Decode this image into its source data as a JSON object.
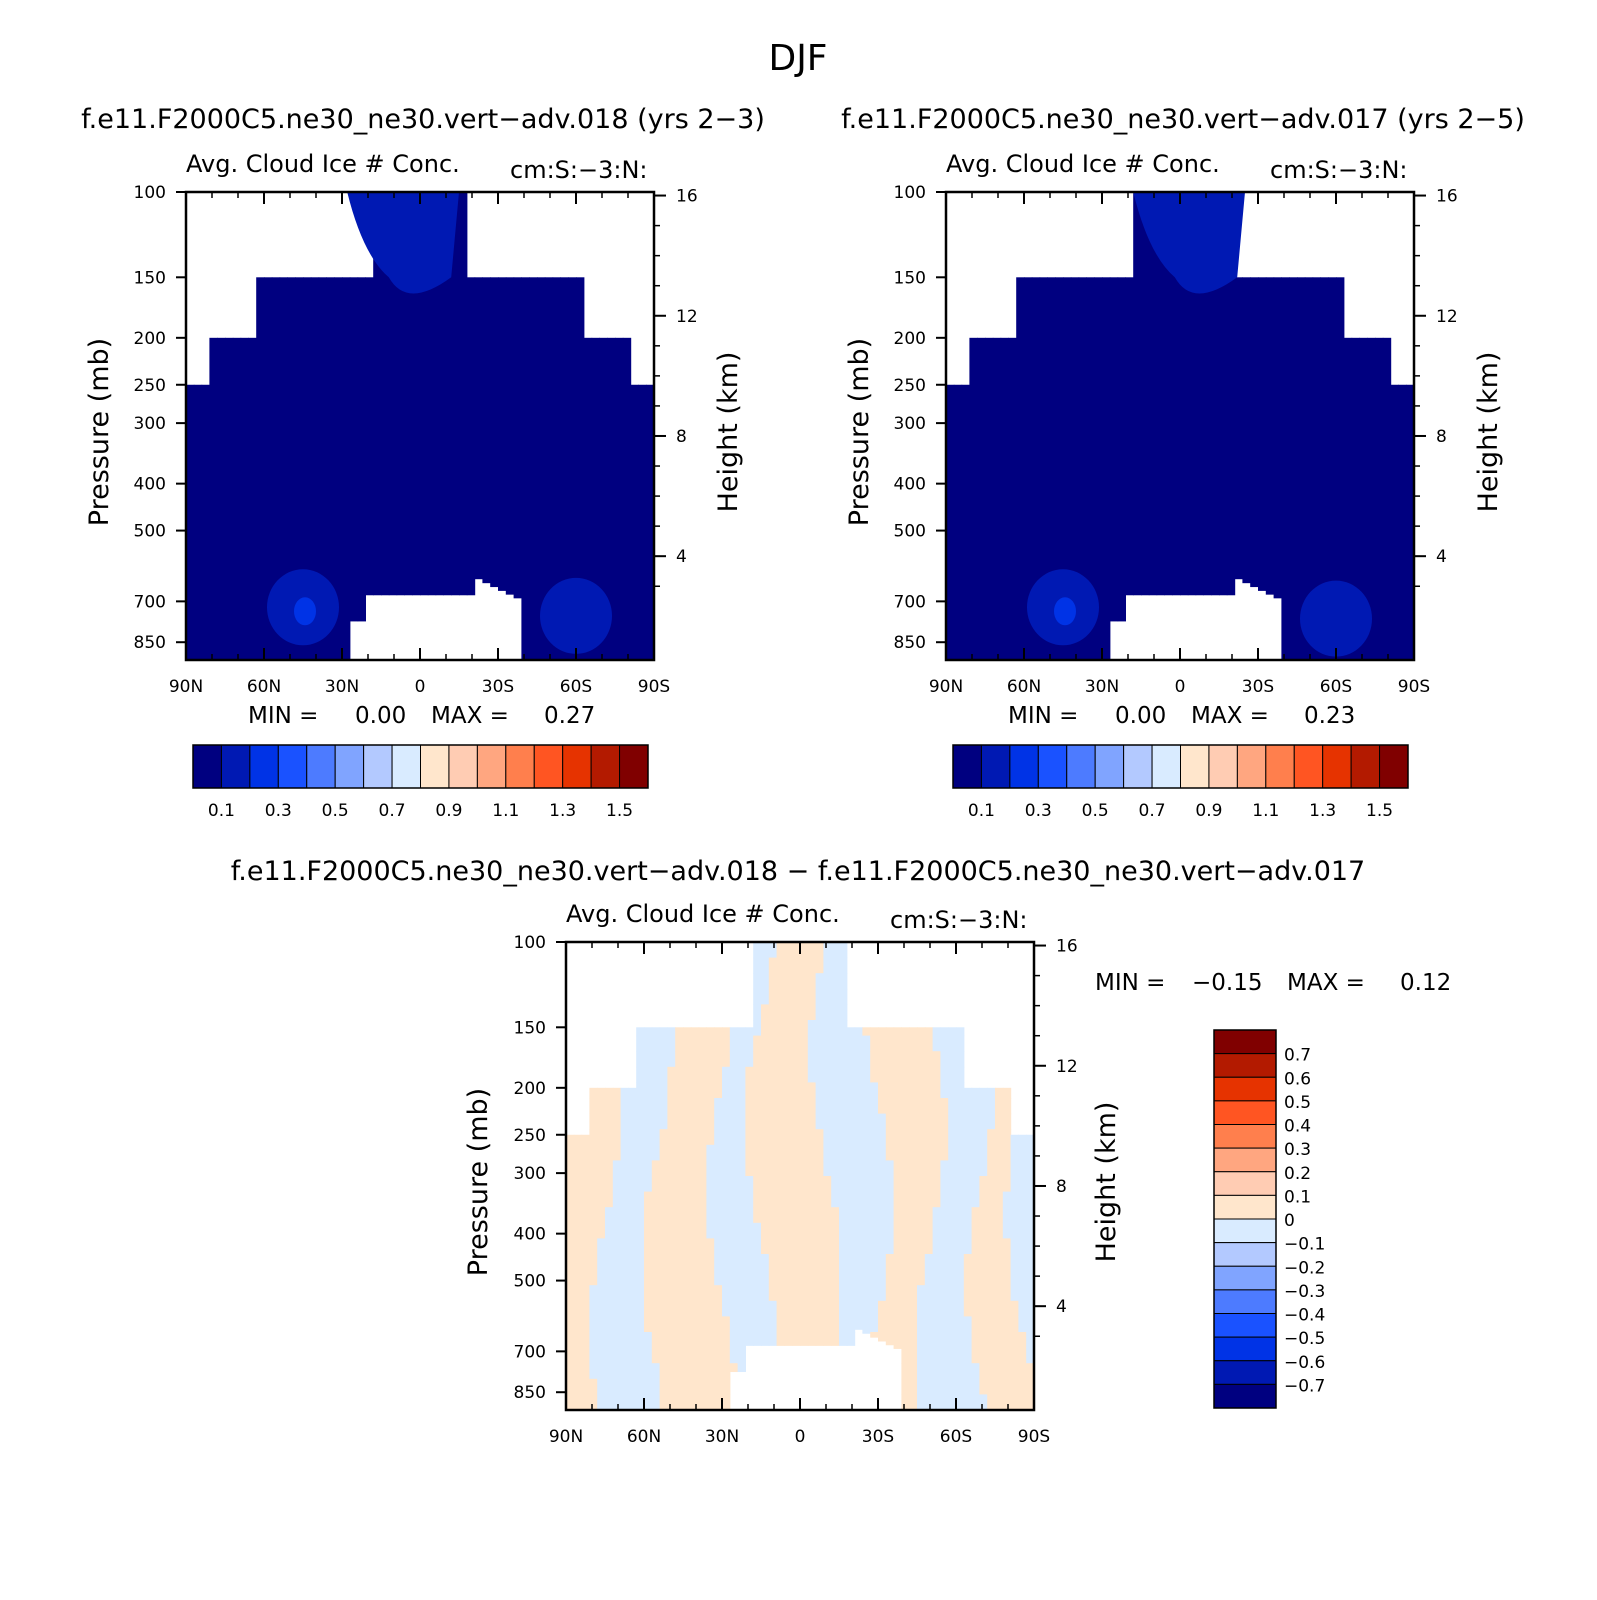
{
  "figure": {
    "title": "DJF"
  },
  "colors": {
    "background": "#ffffff",
    "abs_palette": [
      "#000080",
      "#0019b3",
      "#0033e6",
      "#1a52ff",
      "#4d7bff",
      "#80a4ff",
      "#b3c9ff",
      "#d9ebff",
      "#ffe6cc",
      "#ffccb3",
      "#ffa680",
      "#ff7f4d",
      "#ff5522",
      "#e63300",
      "#b31a00",
      "#800000"
    ],
    "diff_palette": [
      "#000080",
      "#0019b3",
      "#0033e6",
      "#1a52ff",
      "#4d7bff",
      "#80a4ff",
      "#b3c9ff",
      "#d9ebff",
      "#ffe6cc",
      "#ffccb3",
      "#ffa680",
      "#ff7f4d",
      "#ff5522",
      "#e63300",
      "#b31a00",
      "#800000"
    ]
  },
  "chart_data": [
    {
      "type": "heatmap",
      "case_title": "f.e11.F2000C5.ne30_ne30.vert−adv.018 (yrs 2−3)",
      "title": "Avg. Cloud Ice # Conc.",
      "units": "cm:S:−3:N:",
      "ylabel": "Pressure (mb)",
      "y2label": "Height (km)",
      "x_ticks": [
        "90N",
        "60N",
        "30N",
        "0",
        "30S",
        "60S",
        "90S"
      ],
      "y_ticks": [
        "100",
        "150",
        "200",
        "250",
        "300",
        "400",
        "500",
        "700",
        "850"
      ],
      "y2_ticks": [
        "16",
        "12",
        "8",
        "4"
      ],
      "xlim": [
        90,
        -90
      ],
      "ylim": [
        100,
        925
      ],
      "min_label": "MIN =",
      "min_value": "0.00",
      "max_label": "MAX =",
      "max_value": "0.27",
      "colorbar_labels": [
        "0.1",
        "0.3",
        "0.5",
        "0.7",
        "0.9",
        "1.1",
        "1.3",
        "1.5"
      ],
      "colorbar_levels": [
        0.1,
        0.2,
        0.3,
        0.4,
        0.5,
        0.6,
        0.7,
        0.8,
        0.9,
        1.0,
        1.1,
        1.2,
        1.3,
        1.4,
        1.5
      ],
      "value_range": [
        0.0,
        0.27
      ],
      "background_level": 0.05,
      "features": [
        {
          "lat": 45,
          "p": 720,
          "value": 0.18
        },
        {
          "lat": 10,
          "p": 120,
          "value": 0.14
        },
        {
          "lat": -60,
          "p": 750,
          "value": 0.12
        }
      ]
    },
    {
      "type": "heatmap",
      "case_title": "f.e11.F2000C5.ne30_ne30.vert−adv.017 (yrs 2−5)",
      "title": "Avg. Cloud Ice # Conc.",
      "units": "cm:S:−3:N:",
      "ylabel": "Pressure (mb)",
      "y2label": "Height (km)",
      "x_ticks": [
        "90N",
        "60N",
        "30N",
        "0",
        "30S",
        "60S",
        "90S"
      ],
      "y_ticks": [
        "100",
        "150",
        "200",
        "250",
        "300",
        "400",
        "500",
        "700",
        "850"
      ],
      "y2_ticks": [
        "16",
        "12",
        "8",
        "4"
      ],
      "xlim": [
        90,
        -90
      ],
      "ylim": [
        100,
        925
      ],
      "min_label": "MIN =",
      "min_value": "0.00",
      "max_label": "MAX =",
      "max_value": "0.23",
      "colorbar_labels": [
        "0.1",
        "0.3",
        "0.5",
        "0.7",
        "0.9",
        "1.1",
        "1.3",
        "1.5"
      ],
      "colorbar_levels": [
        0.1,
        0.2,
        0.3,
        0.4,
        0.5,
        0.6,
        0.7,
        0.8,
        0.9,
        1.0,
        1.1,
        1.2,
        1.3,
        1.4,
        1.5
      ],
      "value_range": [
        0.0,
        0.23
      ],
      "background_level": 0.05,
      "features": [
        {
          "lat": 45,
          "p": 720,
          "value": 0.17
        },
        {
          "lat": 0,
          "p": 130,
          "value": 0.13
        },
        {
          "lat": -60,
          "p": 760,
          "value": 0.11
        }
      ]
    },
    {
      "type": "heatmap",
      "case_title": "f.e11.F2000C5.ne30_ne30.vert−adv.018 − f.e11.F2000C5.ne30_ne30.vert−adv.017",
      "title": "Avg. Cloud Ice # Conc.",
      "units": "cm:S:−3:N:",
      "ylabel": "Pressure (mb)",
      "y2label": "Height (km)",
      "x_ticks": [
        "90N",
        "60N",
        "30N",
        "0",
        "30S",
        "60S",
        "90S"
      ],
      "y_ticks": [
        "100",
        "150",
        "200",
        "250",
        "300",
        "400",
        "500",
        "700",
        "850"
      ],
      "y2_ticks": [
        "16",
        "12",
        "8",
        "4"
      ],
      "xlim": [
        90,
        -90
      ],
      "ylim": [
        100,
        925
      ],
      "min_label": "MIN =",
      "min_value": "−0.15",
      "max_label": "MAX =",
      "max_value": "0.12",
      "colorbar_labels": [
        "0.7",
        "0.6",
        "0.5",
        "0.4",
        "0.3",
        "0.2",
        "0.1",
        "0",
        "−0.1",
        "−0.2",
        "−0.3",
        "−0.4",
        "−0.5",
        "−0.6",
        "−0.7"
      ],
      "colorbar_levels": [
        -0.7,
        -0.6,
        -0.5,
        -0.4,
        -0.3,
        -0.2,
        -0.1,
        0,
        0.1,
        0.2,
        0.3,
        0.4,
        0.5,
        0.6,
        0.7
      ],
      "value_range": [
        -0.15,
        0.12
      ],
      "sign_pattern_by_lat": [
        {
          "lat": 90,
          "sign": "positive"
        },
        {
          "lat": 75,
          "sign": "negative"
        },
        {
          "lat": 55,
          "sign": "positive"
        },
        {
          "lat": 30,
          "sign": "negative"
        },
        {
          "lat": 15,
          "sign": "positive"
        },
        {
          "lat": -10,
          "sign": "negative"
        },
        {
          "lat": -30,
          "sign": "positive"
        },
        {
          "lat": -50,
          "sign": "negative"
        },
        {
          "lat": -70,
          "sign": "positive"
        },
        {
          "lat": -85,
          "sign": "negative"
        }
      ]
    }
  ]
}
